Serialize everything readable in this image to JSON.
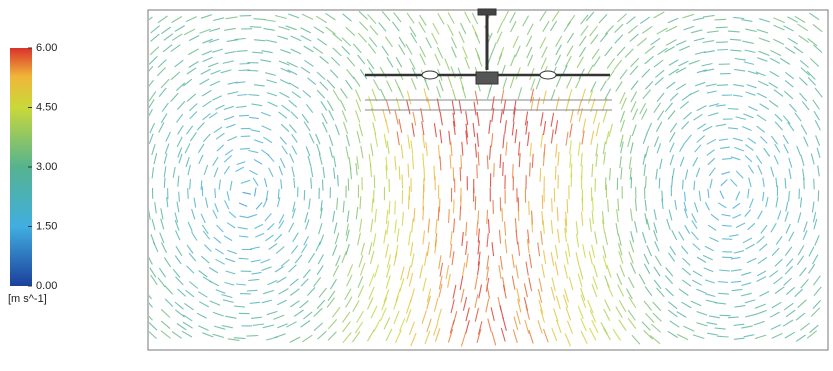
{
  "colorbar": {
    "range": [
      0,
      6
    ],
    "ticks": [
      {
        "value": 6,
        "label": "6.00"
      },
      {
        "value": 4.5,
        "label": "4.50"
      },
      {
        "value": 3,
        "label": "3.00"
      },
      {
        "value": 1.5,
        "label": "1.50"
      },
      {
        "value": 0,
        "label": "0.00"
      }
    ],
    "unit": "[m s^-1]"
  }
}
